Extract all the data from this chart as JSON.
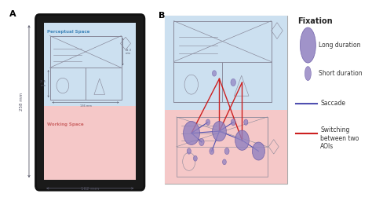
{
  "fig_width": 4.74,
  "fig_height": 2.56,
  "bg_color": "#ffffff",
  "panel_A_label": "A",
  "panel_B_label": "B",
  "tablet_bg": "#1a1a1a",
  "perceptual_bg": "#cce0f0",
  "working_bg": "#f5c8c8",
  "perceptual_label": "Perceptual Space",
  "working_label": "Working Space",
  "dim_label_width": "162 mm",
  "dim_label_height": "258 mm",
  "legend_title": "Fixation",
  "legend_long": "Long duration",
  "legend_short": "Short duration",
  "legend_saccade": "Saccade",
  "legend_switch": "Switching\nbetween two\nAOIs",
  "purple_fill": "#9080c0",
  "purple_edge": "#6050a0",
  "purple_light": "#b0a0d8",
  "blue_line": "#5050b0",
  "red_line": "#cc2020",
  "sketch_color": "#888899",
  "dim_color": "#555566"
}
